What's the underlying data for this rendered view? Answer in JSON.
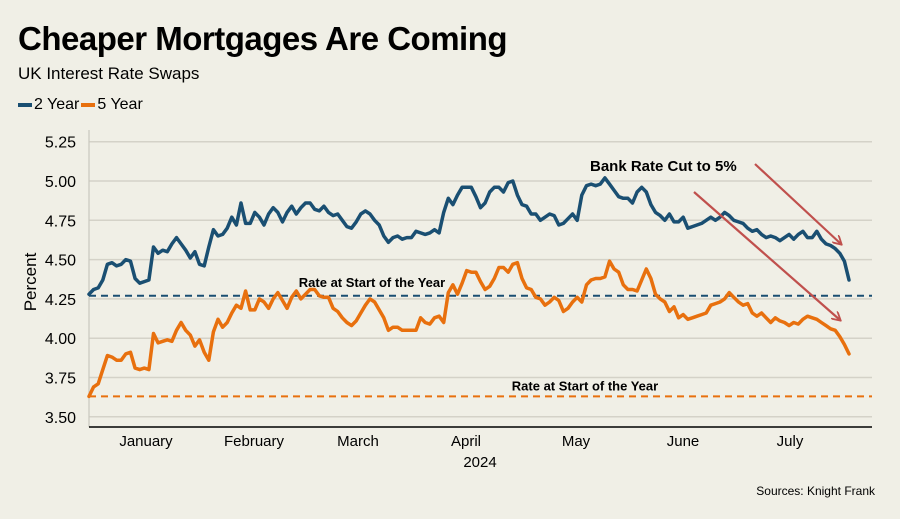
{
  "title": "Cheaper Mortgages Are Coming",
  "subtitle": "UK Interest Rate Swaps",
  "source": "Sources: Knight Frank",
  "colors": {
    "two_year": "#1a4f72",
    "five_year": "#e8700e",
    "arrow": "#c0504d",
    "grid": "#d4d2c8",
    "background": "#f0efe6"
  },
  "chart_data": {
    "type": "line",
    "title": "Cheaper Mortgages Are Coming",
    "subtitle": "UK Interest Rate Swaps",
    "xlabel": "2024",
    "ylabel": "Percent",
    "ylim": [
      3.45,
      5.3
    ],
    "yticks": [
      "5.25",
      "5.00",
      "4.75",
      "4.50",
      "4.25",
      "4.00",
      "3.75",
      "3.50"
    ],
    "ytick_values": [
      5.25,
      5.0,
      4.75,
      4.5,
      4.25,
      4.0,
      3.75,
      3.5
    ],
    "grid": true,
    "legend": {
      "placement": "top-left",
      "entries": [
        "2 Year",
        "5 Year"
      ]
    },
    "x_months": [
      "January",
      "February",
      "March",
      "April",
      "May",
      "June",
      "July"
    ],
    "x_range_note": "daily trading days, early January to late July 2024",
    "series": [
      {
        "name": "2 Year",
        "values": [
          4.28,
          4.31,
          4.32,
          4.37,
          4.47,
          4.48,
          4.46,
          4.47,
          4.5,
          4.49,
          4.38,
          4.35,
          4.36,
          4.37,
          4.58,
          4.54,
          4.56,
          4.55,
          4.6,
          4.64,
          4.6,
          4.56,
          4.51,
          4.55,
          4.47,
          4.46,
          4.58,
          4.69,
          4.65,
          4.66,
          4.7,
          4.77,
          4.72,
          4.86,
          4.73,
          4.73,
          4.8,
          4.77,
          4.72,
          4.79,
          4.83,
          4.8,
          4.74,
          4.8,
          4.84,
          4.79,
          4.83,
          4.86,
          4.86,
          4.82,
          4.81,
          4.84,
          4.8,
          4.78,
          4.79,
          4.75,
          4.71,
          4.7,
          4.74,
          4.79,
          4.81,
          4.79,
          4.75,
          4.72,
          4.65,
          4.61,
          4.64,
          4.65,
          4.63,
          4.64,
          4.64,
          4.68,
          4.67,
          4.66,
          4.67,
          4.69,
          4.67,
          4.8,
          4.89,
          4.85,
          4.91,
          4.96,
          4.96,
          4.96,
          4.9,
          4.83,
          4.86,
          4.93,
          4.96,
          4.96,
          4.93,
          4.99,
          5.0,
          4.91,
          4.85,
          4.84,
          4.79,
          4.79,
          4.75,
          4.77,
          4.79,
          4.78,
          4.72,
          4.73,
          4.76,
          4.79,
          4.75,
          4.91,
          4.97,
          4.98,
          4.97,
          4.98,
          5.02,
          4.98,
          4.94,
          4.9,
          4.89,
          4.89,
          4.86,
          4.93,
          4.96,
          4.93,
          4.85,
          4.8,
          4.78,
          4.75,
          4.79,
          4.74,
          4.74,
          4.77,
          4.7,
          4.71,
          4.72,
          4.73,
          4.75,
          4.77,
          4.75,
          4.77,
          4.8,
          4.78,
          4.75,
          4.74,
          4.73,
          4.7,
          4.68,
          4.69,
          4.66,
          4.64,
          4.65,
          4.64,
          4.62,
          4.64,
          4.66,
          4.63,
          4.66,
          4.68,
          4.64,
          4.64,
          4.68,
          4.63,
          4.6,
          4.59,
          4.57,
          4.54,
          4.49,
          4.37
        ]
      },
      {
        "name": "5 Year",
        "values": [
          3.63,
          3.69,
          3.71,
          3.8,
          3.89,
          3.88,
          3.86,
          3.86,
          3.9,
          3.91,
          3.81,
          3.8,
          3.81,
          3.8,
          4.03,
          3.97,
          3.98,
          3.99,
          3.98,
          4.05,
          4.1,
          4.05,
          4.02,
          3.95,
          3.99,
          3.91,
          3.86,
          4.04,
          4.12,
          4.07,
          4.1,
          4.16,
          4.21,
          4.19,
          4.3,
          4.18,
          4.18,
          4.25,
          4.23,
          4.19,
          4.25,
          4.29,
          4.24,
          4.19,
          4.26,
          4.3,
          4.25,
          4.28,
          4.31,
          4.31,
          4.27,
          4.26,
          4.26,
          4.19,
          4.17,
          4.13,
          4.1,
          4.08,
          4.11,
          4.16,
          4.21,
          4.25,
          4.23,
          4.18,
          4.13,
          4.05,
          4.07,
          4.07,
          4.05,
          4.05,
          4.05,
          4.05,
          4.13,
          4.1,
          4.09,
          4.13,
          4.14,
          4.1,
          4.29,
          4.34,
          4.28,
          4.35,
          4.43,
          4.42,
          4.42,
          4.36,
          4.31,
          4.33,
          4.38,
          4.45,
          4.45,
          4.42,
          4.47,
          4.48,
          4.38,
          4.32,
          4.31,
          4.26,
          4.25,
          4.21,
          4.23,
          4.26,
          4.24,
          4.17,
          4.19,
          4.23,
          4.26,
          4.23,
          4.34,
          4.37,
          4.38,
          4.38,
          4.39,
          4.49,
          4.44,
          4.42,
          4.34,
          4.31,
          4.31,
          4.3,
          4.37,
          4.44,
          4.38,
          4.28,
          4.25,
          4.23,
          4.17,
          4.2,
          4.13,
          4.15,
          4.12,
          4.13,
          4.14,
          4.15,
          4.16,
          4.21,
          4.22,
          4.23,
          4.25,
          4.29,
          4.26,
          4.23,
          4.21,
          4.22,
          4.16,
          4.14,
          4.16,
          4.13,
          4.1,
          4.13,
          4.11,
          4.1,
          4.08,
          4.1,
          4.09,
          4.12,
          4.14,
          4.13,
          4.12,
          4.1,
          4.08,
          4.06,
          4.05,
          4.01,
          3.96,
          3.9
        ]
      }
    ],
    "reference_lines": [
      {
        "series": "2 Year",
        "value": 4.27,
        "label": "Rate at Start of the Year",
        "style": "dashed"
      },
      {
        "series": "5 Year",
        "value": 3.63,
        "label": "Rate at Start of the Year",
        "style": "dashed"
      }
    ],
    "annotations": [
      {
        "text": "Bank Rate Cut to 5%",
        "type": "text"
      },
      {
        "type": "arrow",
        "points_to": "2 Year end"
      },
      {
        "type": "arrow",
        "points_to": "5 Year end"
      }
    ]
  }
}
